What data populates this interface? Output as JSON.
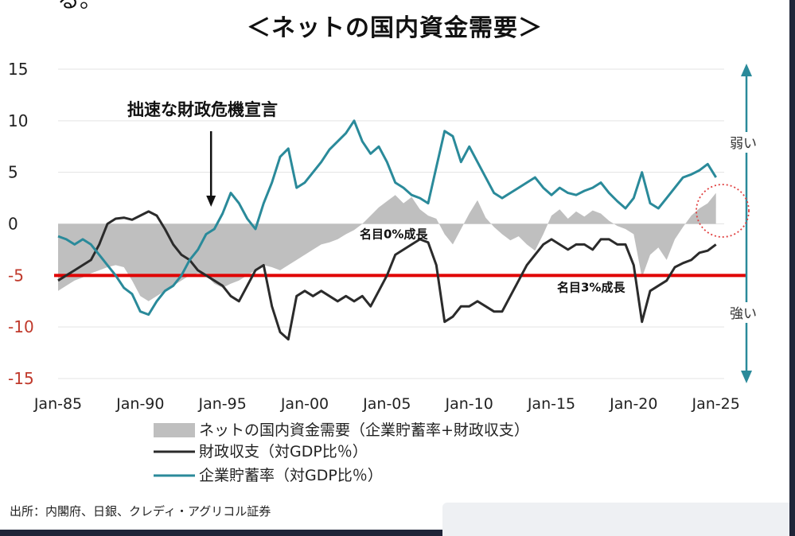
{
  "title_fragment": "る。",
  "source_note": "出所：内閣府、日銀、クレディ・アグリコル証券",
  "colors": {
    "net_demand_fill": "#bfbfbf",
    "fiscal_balance": "#2b2b2b",
    "corporate_saving": "#2a8a9a",
    "reference_line": "#e00000",
    "arrow": "#2a8a9a",
    "annotation_circle": "#e04040"
  },
  "chart_data": {
    "type": "line",
    "title": "＜ネットの国内資金需要＞",
    "ylim": [
      -15,
      15
    ],
    "yticks": [
      "15",
      "10",
      "5",
      "0",
      "-5",
      "-10",
      "-15"
    ],
    "xlim": [
      1985,
      2025.5
    ],
    "xticks": [
      "Jan-85",
      "Jan-90",
      "Jan-95",
      "Jan-00",
      "Jan-05",
      "Jan-10",
      "Jan-15",
      "Jan-20",
      "Jan-25"
    ],
    "xtick_years": [
      1985,
      1990,
      1995,
      2000,
      2005,
      2010,
      2015,
      2020,
      2025
    ],
    "annotations": {
      "arrow_label": "拙速な財政危機宣言",
      "arrow_year": 1994.3,
      "zero_growth_label": "名目0%成長",
      "three_pct_growth_label": "名目3%成長",
      "weak_label": "弱い",
      "strong_label": "強い"
    },
    "reference_line_value": -5,
    "series": [
      {
        "name": "ネットの国内資金需要（企業貯蓄率+財政収支）",
        "type": "area",
        "x": [
          1985,
          1985.5,
          1986,
          1986.5,
          1987,
          1987.5,
          1988,
          1988.5,
          1989,
          1989.5,
          1990,
          1990.5,
          1991,
          1991.5,
          1992,
          1992.5,
          1993,
          1993.5,
          1994,
          1994.5,
          1995,
          1995.5,
          1996,
          1996.5,
          1997,
          1997.5,
          1998,
          1998.5,
          1999,
          1999.5,
          2000,
          2000.5,
          2001,
          2001.5,
          2002,
          2002.5,
          2003,
          2003.5,
          2004,
          2004.5,
          2005,
          2005.5,
          2006,
          2006.5,
          2007,
          2007.5,
          2008,
          2008.5,
          2009,
          2009.5,
          2010,
          2010.5,
          2011,
          2011.5,
          2012,
          2012.5,
          2013,
          2013.5,
          2014,
          2014.5,
          2015,
          2015.5,
          2016,
          2016.5,
          2017,
          2017.5,
          2018,
          2018.5,
          2019,
          2019.5,
          2020,
          2020.5,
          2021,
          2021.5,
          2022,
          2022.5,
          2023,
          2023.5,
          2024,
          2024.5,
          2025
        ],
        "values": [
          -6.5,
          -6,
          -5.5,
          -5.2,
          -4.8,
          -4.5,
          -4.2,
          -4,
          -4.2,
          -5.5,
          -7,
          -7.5,
          -7,
          -6.5,
          -6,
          -5.5,
          -5,
          -4.8,
          -5,
          -5.8,
          -6.2,
          -5.8,
          -5.5,
          -5,
          -4.5,
          -4,
          -4.2,
          -4.5,
          -4,
          -3.5,
          -3,
          -2.5,
          -2,
          -1.8,
          -1.5,
          -1,
          -0.6,
          0,
          0.8,
          1.6,
          2.2,
          2.8,
          2,
          2.6,
          1.4,
          0.8,
          0.5,
          -1,
          -2,
          -0.5,
          1,
          2.3,
          0.6,
          -0.3,
          -1,
          -1.6,
          -1.2,
          -2,
          -2.6,
          -1,
          0.8,
          1.4,
          0.5,
          1.2,
          0.7,
          1.3,
          1.0,
          0.3,
          -0.2,
          -0.5,
          -1,
          -5.2,
          -3,
          -2.3,
          -3.5,
          -1.5,
          -0.3,
          0.8,
          1.5,
          2,
          3
        ]
      },
      {
        "name": "財政収支（対GDP比％）",
        "type": "line",
        "x": [
          1985,
          1985.5,
          1986,
          1986.5,
          1987,
          1987.5,
          1988,
          1988.5,
          1989,
          1989.5,
          1990,
          1990.5,
          1991,
          1991.5,
          1992,
          1992.5,
          1993,
          1993.5,
          1994,
          1994.5,
          1995,
          1995.5,
          1996,
          1996.5,
          1997,
          1997.5,
          1998,
          1998.5,
          1999,
          1999.5,
          2000,
          2000.5,
          2001,
          2001.5,
          2002,
          2002.5,
          2003,
          2003.5,
          2004,
          2004.5,
          2005,
          2005.5,
          2006,
          2006.5,
          2007,
          2007.5,
          2008,
          2008.5,
          2009,
          2009.5,
          2010,
          2010.5,
          2011,
          2011.5,
          2012,
          2012.5,
          2013,
          2013.5,
          2014,
          2014.5,
          2015,
          2015.5,
          2016,
          2016.5,
          2017,
          2017.5,
          2018,
          2018.5,
          2019,
          2019.5,
          2020,
          2020.5,
          2021,
          2021.5,
          2022,
          2022.5,
          2023,
          2023.5,
          2024,
          2024.5,
          2025
        ],
        "values": [
          -5.5,
          -5,
          -4.5,
          -4,
          -3.5,
          -2,
          0,
          0.5,
          0.6,
          0.4,
          0.8,
          1.2,
          0.8,
          -0.5,
          -2,
          -3,
          -3.5,
          -4.5,
          -5,
          -5.5,
          -6,
          -7,
          -7.5,
          -6,
          -4.5,
          -4,
          -8,
          -10.5,
          -11.2,
          -7,
          -6.5,
          -7,
          -6.5,
          -7,
          -7.5,
          -7,
          -7.5,
          -7,
          -8,
          -6.5,
          -5,
          -3,
          -2.5,
          -2,
          -1.5,
          -1.8,
          -4,
          -9.5,
          -9,
          -8,
          -8,
          -7.5,
          -8,
          -8.5,
          -8.5,
          -7,
          -5.5,
          -4,
          -3,
          -2,
          -1.5,
          -2,
          -2.5,
          -2,
          -2,
          -2.5,
          -1.5,
          -1.5,
          -2,
          -2,
          -4,
          -9.5,
          -6.5,
          -6,
          -5.5,
          -4.2,
          -3.8,
          -3.5,
          -2.8,
          -2.6,
          -2
        ]
      },
      {
        "name": "企業貯蓄率（対GDP比％）",
        "type": "line",
        "x": [
          1985,
          1985.5,
          1986,
          1986.5,
          1987,
          1987.5,
          1988,
          1988.5,
          1989,
          1989.5,
          1990,
          1990.5,
          1991,
          1991.5,
          1992,
          1992.5,
          1993,
          1993.5,
          1994,
          1994.5,
          1995,
          1995.5,
          1996,
          1996.5,
          1997,
          1997.5,
          1998,
          1998.5,
          1999,
          1999.5,
          2000,
          2000.5,
          2001,
          2001.5,
          2002,
          2002.5,
          2003,
          2003.5,
          2004,
          2004.5,
          2005,
          2005.5,
          2006,
          2006.5,
          2007,
          2007.5,
          2008,
          2008.5,
          2009,
          2009.5,
          2010,
          2010.5,
          2011,
          2011.5,
          2012,
          2012.5,
          2013,
          2013.5,
          2014,
          2014.5,
          2015,
          2015.5,
          2016,
          2016.5,
          2017,
          2017.5,
          2018,
          2018.5,
          2019,
          2019.5,
          2020,
          2020.5,
          2021,
          2021.5,
          2022,
          2022.5,
          2023,
          2023.5,
          2024,
          2024.5,
          2025
        ],
        "values": [
          -1.2,
          -1.5,
          -2,
          -1.5,
          -2,
          -3,
          -4,
          -5,
          -6.2,
          -6.8,
          -8.5,
          -8.8,
          -7.5,
          -6.5,
          -6,
          -5,
          -3.5,
          -2.5,
          -1,
          -0.5,
          1,
          3,
          2,
          0.5,
          -0.5,
          2,
          4,
          6.5,
          7.3,
          3.5,
          4,
          5,
          6,
          7.2,
          8,
          8.8,
          10,
          8,
          6.8,
          7.5,
          6,
          4,
          3.5,
          2.8,
          2.5,
          2,
          5.5,
          9,
          8.5,
          6,
          7.5,
          6,
          4.5,
          3,
          2.5,
          3,
          3.5,
          4,
          4.5,
          3.5,
          2.8,
          3.5,
          3,
          2.8,
          3.2,
          3.5,
          4,
          3,
          2.2,
          1.5,
          2.5,
          5,
          2,
          1.5,
          2.5,
          3.5,
          4.5,
          4.8,
          5.2,
          5.8,
          4.5
        ]
      }
    ]
  }
}
